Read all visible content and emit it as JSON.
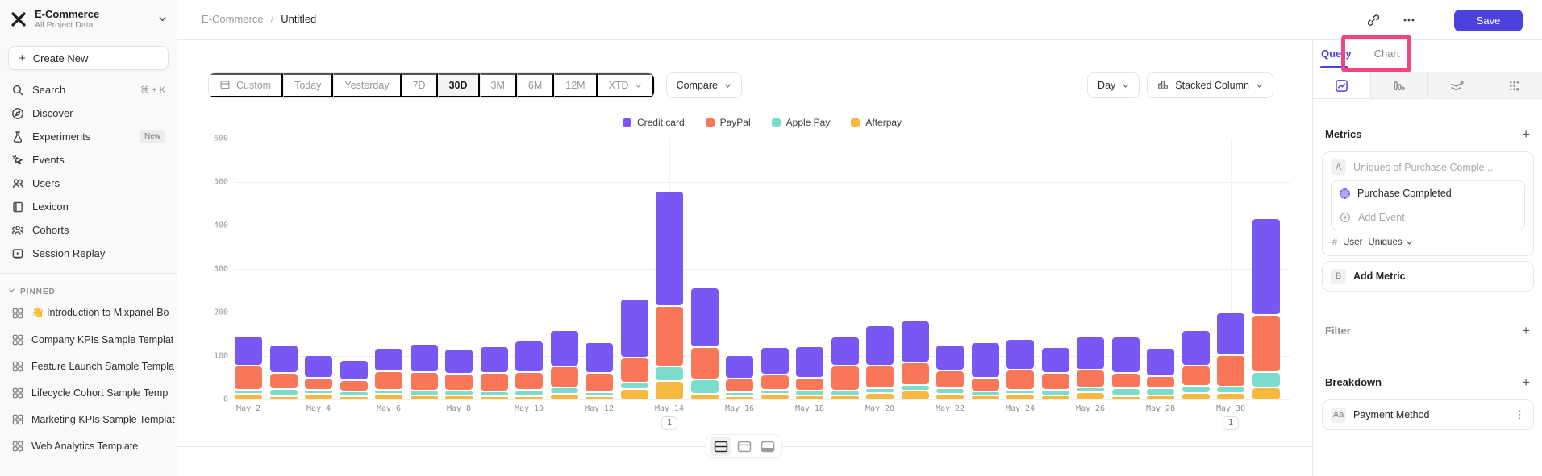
{
  "colors": {
    "accent": "#4b41dd",
    "highlight_pink": "#f0457e",
    "credit_card": "#7857f5",
    "paypal": "#f87758",
    "apple_pay": "#7bdcce",
    "afterpay": "#f6b83f"
  },
  "sidebar": {
    "project": {
      "name": "E-Commerce",
      "subtitle": "All Project Data"
    },
    "create_label": "Create New",
    "nav": [
      {
        "icon": "search",
        "label": "Search",
        "shortcut": "⌘ + K"
      },
      {
        "icon": "discover",
        "label": "Discover"
      },
      {
        "icon": "experiments",
        "label": "Experiments",
        "badge": "New"
      },
      {
        "icon": "events",
        "label": "Events"
      },
      {
        "icon": "users",
        "label": "Users"
      },
      {
        "icon": "lexicon",
        "label": "Lexicon"
      },
      {
        "icon": "cohorts",
        "label": "Cohorts"
      },
      {
        "icon": "replay",
        "label": "Session Replay"
      }
    ],
    "pinned_label": "PINNED",
    "pinned": [
      {
        "label": "👋 Introduction to Mixpanel Bo"
      },
      {
        "label": "Company KPIs Sample Templat"
      },
      {
        "label": "Feature Launch Sample Templa"
      },
      {
        "label": "Lifecycle Cohort Sample Temp"
      },
      {
        "label": "Marketing KPIs Sample Templat"
      },
      {
        "label": "Web Analytics Template"
      }
    ]
  },
  "topbar": {
    "breadcrumb": [
      "E-Commerce",
      "Untitled"
    ],
    "save_label": "Save"
  },
  "toolbar": {
    "date_ranges": [
      "Custom",
      "Today",
      "Yesterday",
      "7D",
      "30D",
      "3M",
      "6M",
      "12M",
      "XTD"
    ],
    "active_range": "30D",
    "compare_label": "Compare",
    "interval_label": "Day",
    "chart_type_label": "Stacked Column"
  },
  "chart_data": {
    "type": "bar",
    "stacked": true,
    "title": "",
    "xlabel": "",
    "ylabel": "",
    "ylim": [
      0,
      600
    ],
    "y_ticks": [
      0,
      100,
      200,
      300,
      400,
      500,
      600
    ],
    "grid": true,
    "legend_position": "top-center",
    "categories": [
      "May 2",
      "May 3",
      "May 4",
      "May 5",
      "May 6",
      "May 7",
      "May 8",
      "May 9",
      "May 10",
      "May 11",
      "May 12",
      "May 13",
      "May 14",
      "May 15",
      "May 16",
      "May 17",
      "May 18",
      "May 19",
      "May 20",
      "May 21",
      "May 22",
      "May 23",
      "May 24",
      "May 25",
      "May 26",
      "May 27",
      "May 28",
      "May 29",
      "May 30",
      "May 31"
    ],
    "x_tick_labels": [
      "May 2",
      "May 4",
      "May 6",
      "May 8",
      "May 10",
      "May 12",
      "May 14",
      "May 16",
      "May 18",
      "May 20",
      "May 22",
      "May 24",
      "May 26",
      "May 28",
      "May 30"
    ],
    "series": [
      {
        "name": "Credit card",
        "color": "#7857f5",
        "values": [
          70,
          65,
          53,
          45,
          54,
          64,
          56,
          62,
          72,
          84,
          70,
          135,
          264,
          137,
          54,
          62,
          72,
          67,
          93,
          95,
          59,
          82,
          69,
          59,
          75,
          84,
          65,
          82,
          99,
          222
        ]
      },
      {
        "name": "PayPal",
        "color": "#f87758",
        "values": [
          54,
          37,
          27,
          26,
          41,
          43,
          40,
          43,
          40,
          49,
          45,
          57,
          139,
          74,
          31,
          35,
          29,
          57,
          51,
          52,
          42,
          31,
          46,
          39,
          41,
          35,
          29,
          46,
          72,
          133
        ]
      },
      {
        "name": "Apple Pay",
        "color": "#7bdcce",
        "values": [
          10,
          16,
          10,
          11,
          11,
          10,
          10,
          10,
          15,
          15,
          6,
          15,
          34,
          34,
          6,
          11,
          11,
          11,
          12,
          14,
          12,
          9,
          11,
          12,
          11,
          19,
          16,
          17,
          14,
          34
        ]
      },
      {
        "name": "Afterpay",
        "color": "#f6b83f",
        "values": [
          15,
          10,
          14,
          10,
          14,
          12,
          12,
          10,
          7,
          14,
          6,
          26,
          44,
          14,
          7,
          14,
          12,
          11,
          16,
          22,
          15,
          11,
          14,
          12,
          19,
          8,
          11,
          17,
          17,
          30
        ]
      }
    ],
    "annotations": [
      {
        "category": "May 14",
        "label": "1"
      },
      {
        "category": "May 30",
        "label": "1"
      }
    ]
  },
  "panel": {
    "tabs": {
      "query": "Query",
      "chart": "Chart"
    },
    "metrics": {
      "header": "Metrics",
      "row_badge": "A",
      "row_label": "Uniques of Purchase Comple...",
      "event_label": "Purchase Completed",
      "add_event_label": "Add Event",
      "measure_hash": "#",
      "measure_entity": "User",
      "measure_type": "Uniques",
      "add_metric_badge": "B",
      "add_metric_label": "Add Metric"
    },
    "filter_header": "Filter",
    "breakdown": {
      "header": "Breakdown",
      "item_badge": "Aa",
      "item_label": "Payment Method"
    }
  }
}
